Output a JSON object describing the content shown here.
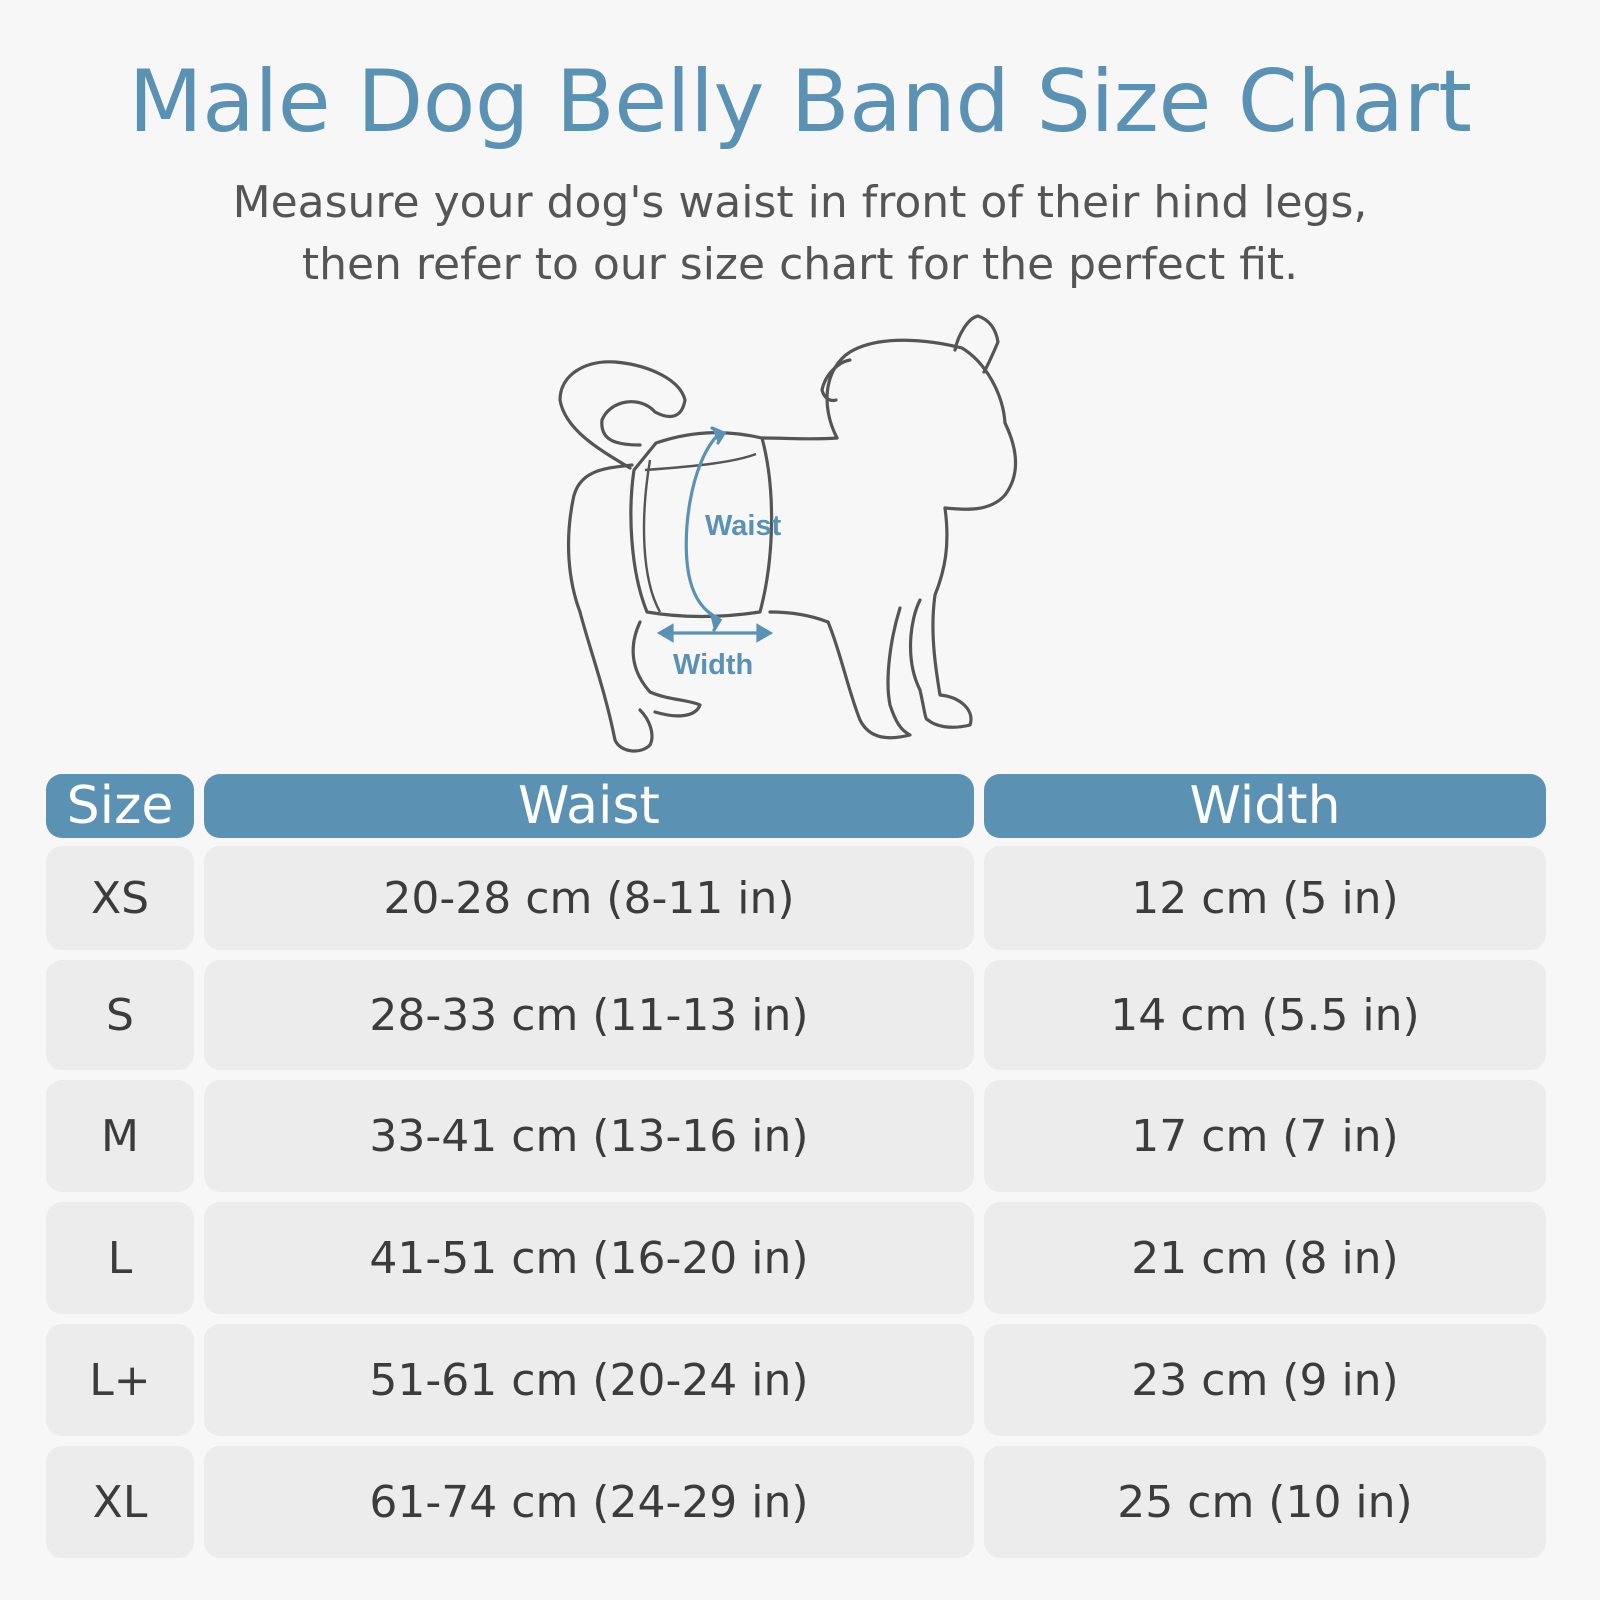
{
  "page": {
    "title": "Male Dog Belly Band Size Chart",
    "subtitle_lines": [
      "Measure your dog's waist in front of their hind legs,",
      "then refer to our size chart for the perfect fit."
    ]
  },
  "illustration": {
    "waist_label": "Waist",
    "width_label": "Width",
    "accent_color": "#5b92b3",
    "outline_color": "#555555"
  },
  "table": {
    "headers": {
      "size": "Size",
      "waist": "Waist",
      "width": "Width"
    },
    "rows": [
      {
        "size": "XS",
        "waist": "20-28 cm (8-11 in)",
        "width": "12 cm (5 in)"
      },
      {
        "size": "S",
        "waist": "28-33 cm (11-13 in)",
        "width": "14 cm (5.5 in)"
      },
      {
        "size": "M",
        "waist": "33-41 cm (13-16 in)",
        "width": "17 cm (7 in)"
      },
      {
        "size": "L",
        "waist": "41-51 cm (16-20 in)",
        "width": "21 cm (8 in)"
      },
      {
        "size": "L+",
        "waist": "51-61 cm (20-24 in)",
        "width": "23 cm (9 in)"
      },
      {
        "size": "XL",
        "waist": "61-74 cm (24-29 in)",
        "width": "25 cm (10 in)"
      }
    ]
  },
  "colors": {
    "accent": "#5b92b3",
    "background": "#f7f7f7",
    "cell": "#ececec",
    "text": "#3c3c3c"
  }
}
